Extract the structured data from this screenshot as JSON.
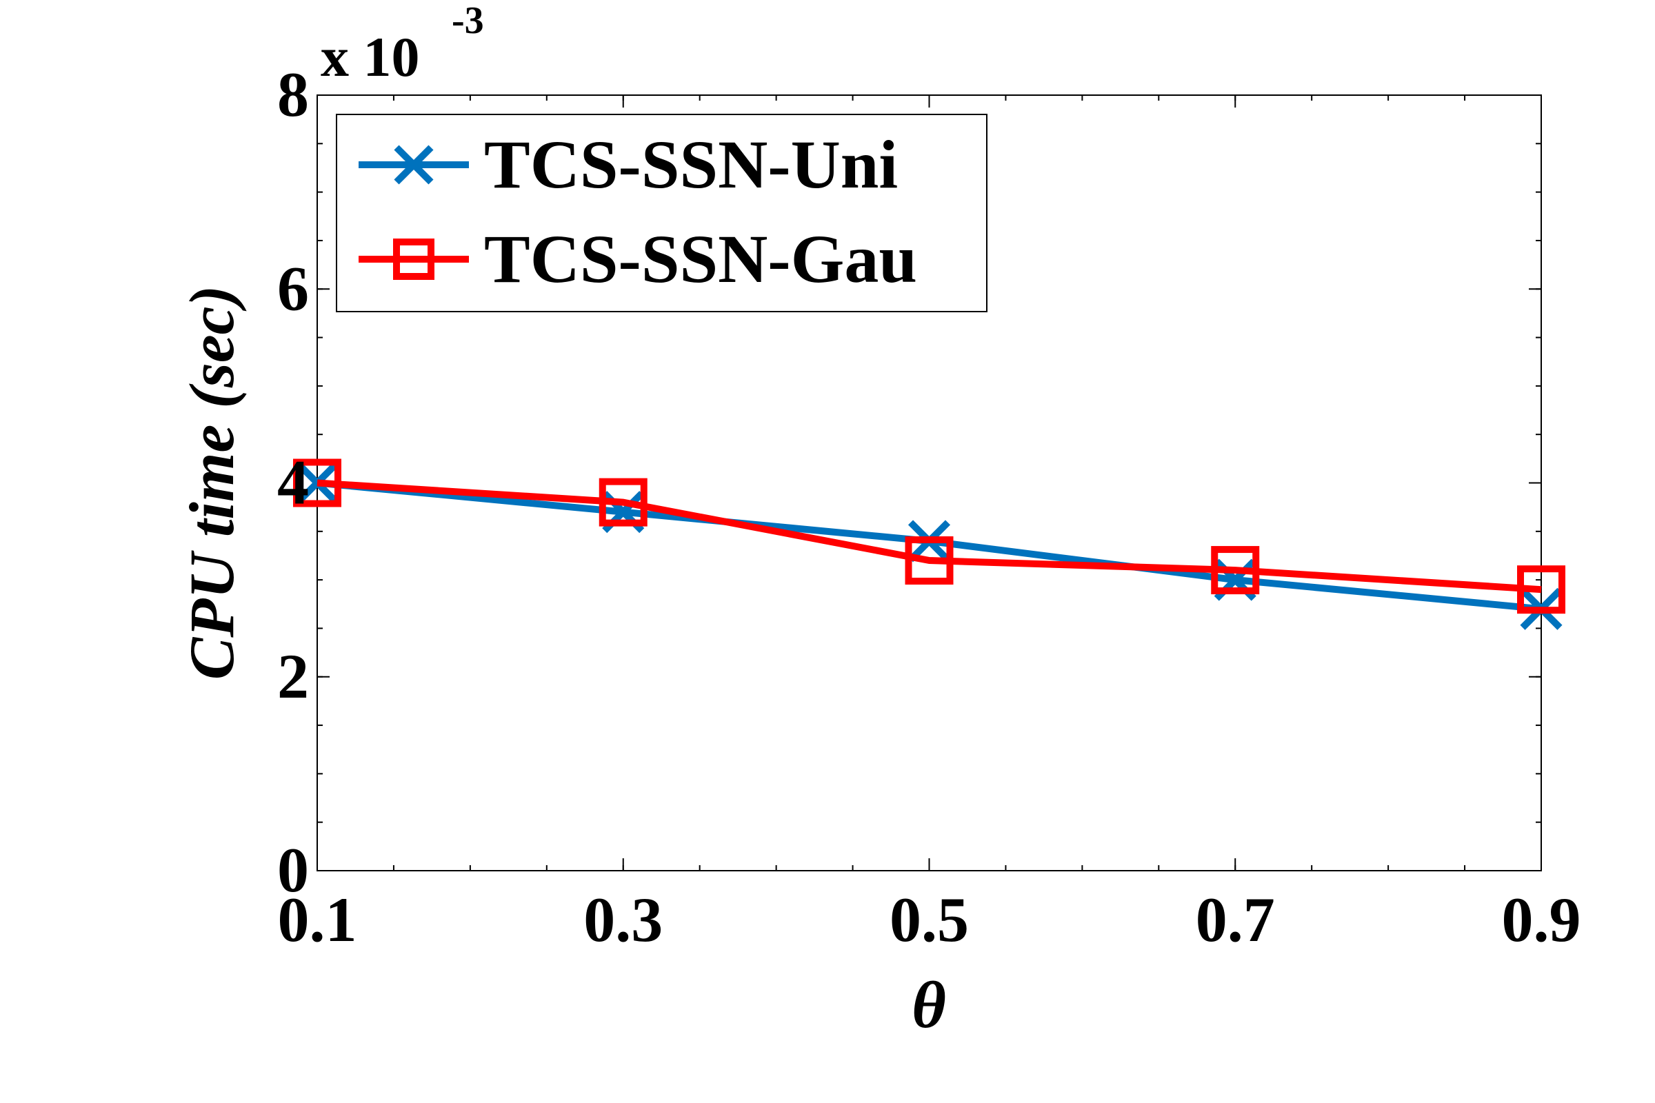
{
  "chart_data": {
    "type": "line",
    "xlabel": "θ",
    "ylabel": "CPU time (sec)",
    "y_multiplier_base": "x 10",
    "y_multiplier_exponent": "-3",
    "x": [
      0.1,
      0.3,
      0.5,
      0.7,
      0.9
    ],
    "x_tick_labels": [
      "0.1",
      "0.3",
      "0.5",
      "0.7",
      "0.9"
    ],
    "y_tick_labels": [
      "0",
      "2",
      "4",
      "6",
      "8"
    ],
    "y_ticks": [
      0,
      2,
      4,
      6,
      8
    ],
    "xlim": [
      0.1,
      0.9
    ],
    "ylim": [
      0,
      8
    ],
    "grid": false,
    "legend_position": "top-left",
    "series": [
      {
        "name": "TCS-SSN-Uni",
        "values": [
          4.0,
          3.7,
          3.4,
          3.0,
          2.7
        ],
        "color": "#0072BD",
        "marker": "x"
      },
      {
        "name": "TCS-SSN-Gau",
        "values": [
          4.0,
          3.8,
          3.2,
          3.1,
          2.9
        ],
        "color": "#FF0000",
        "marker": "square"
      }
    ]
  }
}
